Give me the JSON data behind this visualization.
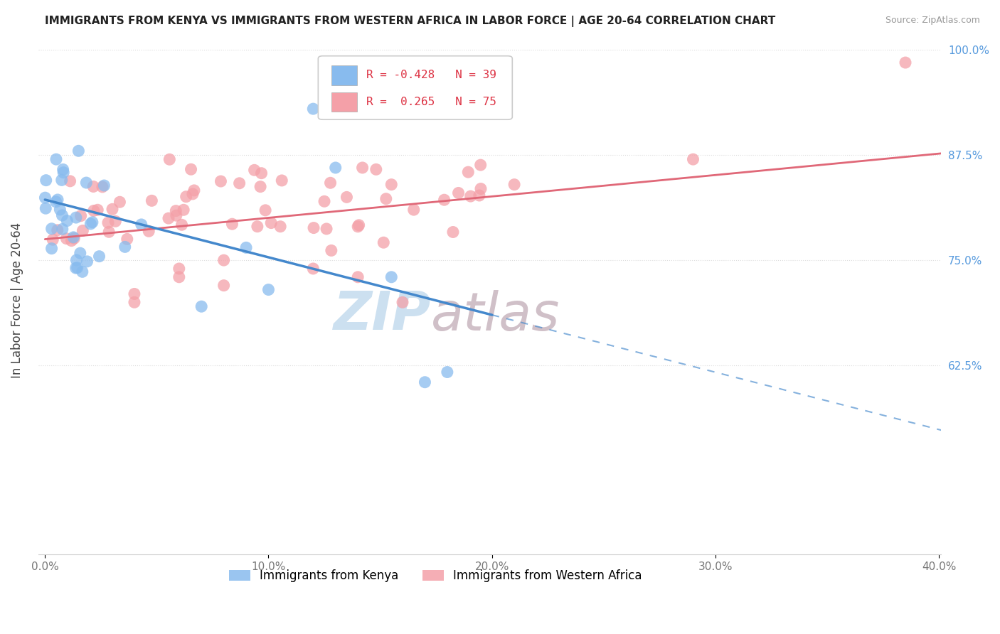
{
  "title": "IMMIGRANTS FROM KENYA VS IMMIGRANTS FROM WESTERN AFRICA IN LABOR FORCE | AGE 20-64 CORRELATION CHART",
  "source": "Source: ZipAtlas.com",
  "xlabel_kenya": "Immigrants from Kenya",
  "xlabel_western": "Immigrants from Western Africa",
  "ylabel": "In Labor Force | Age 20-64",
  "xlim": [
    -0.003,
    0.401
  ],
  "ylim": [
    0.4,
    1.005
  ],
  "ytick_vals": [
    0.625,
    0.75,
    0.875,
    1.0
  ],
  "ytick_labels": [
    "62.5%",
    "75.0%",
    "87.5%",
    "100.0%"
  ],
  "xtick_vals": [
    0.0,
    0.1,
    0.2,
    0.3,
    0.4
  ],
  "xtick_labels": [
    "0.0%",
    "10.0%",
    "20.0%",
    "30.0%",
    "40.0%"
  ],
  "kenya_R": -0.428,
  "kenya_N": 39,
  "western_R": 0.265,
  "western_N": 75,
  "kenya_color": "#88bbee",
  "western_color": "#f4a0a8",
  "kenya_line_color": "#4488cc",
  "western_line_color": "#e06878",
  "watermark_color": "#cce0f0",
  "watermark_color2": "#d0c0c8",
  "right_tick_color": "#5599dd"
}
